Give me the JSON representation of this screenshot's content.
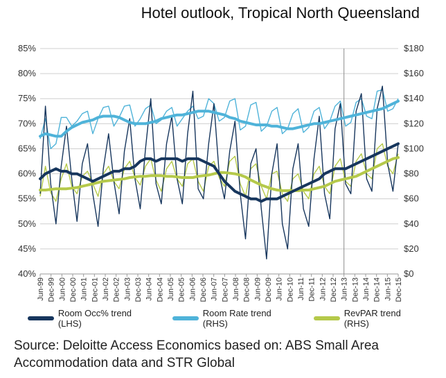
{
  "chart_data": {
    "type": "line",
    "title": "Hotel outlook, Tropical North Queensland",
    "source": "Source: Deloitte Access Economics based on: ABS Small Area Accommodation data and STR Global",
    "left_axis": {
      "ylim": [
        40,
        85
      ],
      "ticks": [
        "40%",
        "45%",
        "50%",
        "55%",
        "60%",
        "65%",
        "70%",
        "75%",
        "80%",
        "85%"
      ]
    },
    "right_axis": {
      "ylim": [
        0,
        180
      ],
      "ticks": [
        "$0",
        "$20",
        "$40",
        "$60",
        "$80",
        "$100",
        "$120",
        "$140",
        "$160",
        "$180"
      ]
    },
    "x_labels": [
      "Jun-99",
      "Dec-99",
      "Jun-00",
      "Dec-00",
      "Jun-01",
      "Dec-01",
      "Jun-02",
      "Dec-02",
      "Jun-03",
      "Dec-03",
      "Jun-04",
      "Dec-04",
      "Jun-05",
      "Dec-05",
      "Jun-06",
      "Dec-06",
      "Jun-07",
      "Dec-07",
      "Jun-08",
      "Dec-08",
      "Jun-09",
      "Dec-09",
      "Jun-10",
      "Dec-10",
      "Jun-11",
      "Dec-11",
      "Jun-12",
      "Dec-12",
      "Jun-13",
      "Dec-13",
      "Jun-14",
      "Dec-14",
      "Jun-15",
      "Dec-15"
    ],
    "forecast_divider": "Jun-13",
    "legend_position": "bottom",
    "grid": "horizontal",
    "series": [
      {
        "name": "Room Occ% trend (LHS)",
        "axis": "left",
        "color": "#17365d",
        "trend": [
          59,
          60,
          60.5,
          61,
          60.5,
          60.5,
          60,
          60,
          59.5,
          59,
          58.5,
          59,
          59.5,
          60,
          60.5,
          60.5,
          61,
          61,
          61.5,
          62.5,
          63,
          63,
          62.5,
          63,
          63,
          63,
          63,
          62.5,
          63,
          63,
          63,
          62.5,
          62,
          61.5,
          60,
          58.5,
          57.5,
          56.5,
          56,
          55.5,
          55,
          55,
          54.5,
          55,
          55,
          55,
          55.5,
          56,
          56.5,
          57,
          57.5,
          58,
          58.5,
          59,
          60,
          60.5,
          61,
          61,
          61,
          61.5,
          62,
          62.5,
          63,
          63.5,
          64,
          64.5,
          65,
          65.5,
          66
        ],
        "raw": [
          56,
          73.5,
          58,
          50,
          61.5,
          69.5,
          59,
          50.5,
          62,
          66,
          56,
          49.5,
          61,
          68,
          58.5,
          52,
          64.5,
          71,
          59,
          53,
          65,
          75,
          58,
          54,
          66,
          71.5,
          59,
          54,
          68,
          76.5,
          57,
          55,
          66,
          74,
          60,
          55,
          64.5,
          70.5,
          56,
          47,
          62,
          65,
          53,
          43,
          60,
          66,
          50,
          45,
          61,
          66,
          53,
          49.5,
          63,
          71.5,
          56,
          51,
          69,
          74,
          58,
          56,
          72.5,
          76,
          59,
          56.5,
          73,
          77.5,
          62,
          56.5,
          66
        ]
      },
      {
        "name": "Room Rate trend (RHS)",
        "axis": "right",
        "color": "#4fb3d9",
        "trend": [
          110,
          112,
          111,
          110,
          110,
          114,
          117,
          119,
          121,
          122,
          123,
          125,
          126,
          126,
          126,
          125,
          123,
          121,
          120,
          120,
          120,
          121,
          122,
          124,
          125,
          126,
          127,
          127,
          128,
          129,
          130,
          130,
          130,
          129,
          128,
          127,
          125,
          124,
          122,
          121,
          120,
          119,
          119,
          119,
          118,
          118,
          117,
          116,
          116,
          117,
          118,
          119,
          120,
          120,
          121,
          122,
          123,
          124,
          125,
          126,
          127,
          128,
          129,
          130,
          131,
          132,
          134,
          136,
          138
        ],
        "raw": [
          108,
          124,
          100,
          104,
          125,
          125,
          118,
          122,
          128,
          130,
          112,
          124,
          133,
          134,
          118,
          125,
          134,
          135,
          118,
          124,
          132,
          135,
          120,
          123,
          130,
          133,
          118,
          124,
          130,
          134,
          124,
          126,
          140,
          136,
          122,
          125,
          138,
          140,
          115,
          118,
          135,
          137,
          114,
          118,
          130,
          133,
          112,
          116,
          128,
          132,
          113,
          117,
          130,
          133,
          116,
          122,
          134,
          138,
          118,
          121,
          137,
          140,
          126,
          124,
          146,
          147,
          130,
          132,
          140
        ]
      },
      {
        "name": "RevPAR trend (RHS)",
        "axis": "right",
        "color": "#b5c94a",
        "trend": [
          67,
          67,
          67.5,
          68,
          68,
          68,
          68.5,
          69,
          70,
          71,
          72,
          73,
          74,
          74.5,
          75,
          75.5,
          76,
          77,
          77.5,
          78,
          78,
          78.5,
          78.5,
          78.5,
          78,
          78,
          77.5,
          77,
          77,
          77,
          78,
          78.5,
          79,
          80,
          81,
          81,
          80.5,
          80,
          79,
          77.5,
          75,
          73,
          71,
          69.5,
          68,
          67,
          66.5,
          66.5,
          66.5,
          66.5,
          67,
          67,
          68,
          69,
          70,
          72,
          74,
          75,
          76,
          77,
          78,
          80,
          82,
          84,
          86,
          88,
          90,
          92,
          93
        ],
        "raw": [
          62,
          86,
          65,
          58,
          76,
          88,
          70,
          64,
          78,
          82,
          72,
          62,
          80,
          86,
          74,
          68,
          84,
          90,
          77,
          71,
          86,
          92,
          75,
          66,
          84,
          90,
          76,
          70,
          88,
          92,
          74,
          66,
          86,
          90,
          77,
          70,
          90,
          94,
          72,
          62,
          84,
          88,
          70,
          60,
          80,
          82,
          64,
          58,
          76,
          80,
          66,
          60,
          80,
          86,
          70,
          64,
          86,
          92,
          74,
          70,
          90,
          96,
          80,
          76,
          100,
          104,
          86,
          80,
          96
        ]
      }
    ]
  }
}
